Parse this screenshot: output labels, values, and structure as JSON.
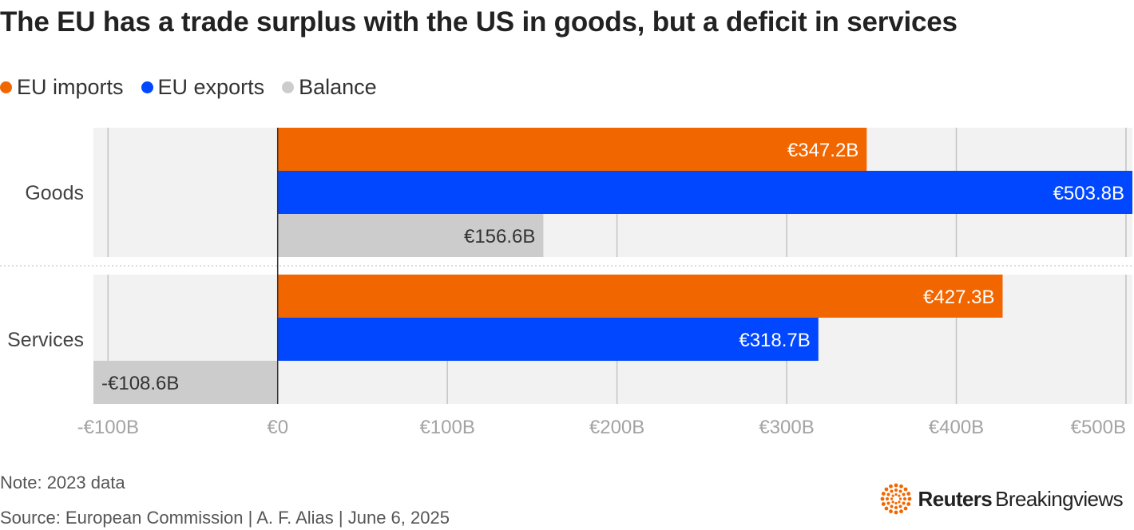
{
  "title": "The EU has a trade surplus with the US in goods, but a deficit in services",
  "legend": [
    {
      "label": "EU imports",
      "color": "#f26600"
    },
    {
      "label": "EU exports",
      "color": "#0047ff"
    },
    {
      "label": "Balance",
      "color": "#cccccc"
    }
  ],
  "chart_data": {
    "type": "bar",
    "orientation": "horizontal",
    "categories": [
      "Goods",
      "Services"
    ],
    "series": [
      {
        "name": "EU imports",
        "color": "#f26600",
        "values": [
          347.2,
          427.3
        ],
        "labels": [
          "€347.2B",
          "€427.3B"
        ]
      },
      {
        "name": "EU exports",
        "color": "#0047ff",
        "values": [
          503.8,
          318.7
        ],
        "labels": [
          "€503.8B",
          "€318.7B"
        ]
      },
      {
        "name": "Balance",
        "color": "#cccccc",
        "values": [
          156.6,
          -108.6
        ],
        "labels": [
          "€156.6B",
          "-€108.6B"
        ]
      }
    ],
    "xlim": [
      -108.6,
      503.8
    ],
    "xticks": [
      -100,
      0,
      100,
      200,
      300,
      400,
      500
    ],
    "xtick_labels": [
      "-€100B",
      "€0",
      "€100B",
      "€200B",
      "€300B",
      "€400B",
      "€500B"
    ],
    "grid": true,
    "legend_position": "top-left"
  },
  "note": "Note: 2023 data",
  "source": "Source: European Commission | A. F. Alias | June 6, 2025",
  "brand": {
    "name": "Reuters",
    "product": "Breakingviews",
    "logo_color": "#f26600"
  }
}
